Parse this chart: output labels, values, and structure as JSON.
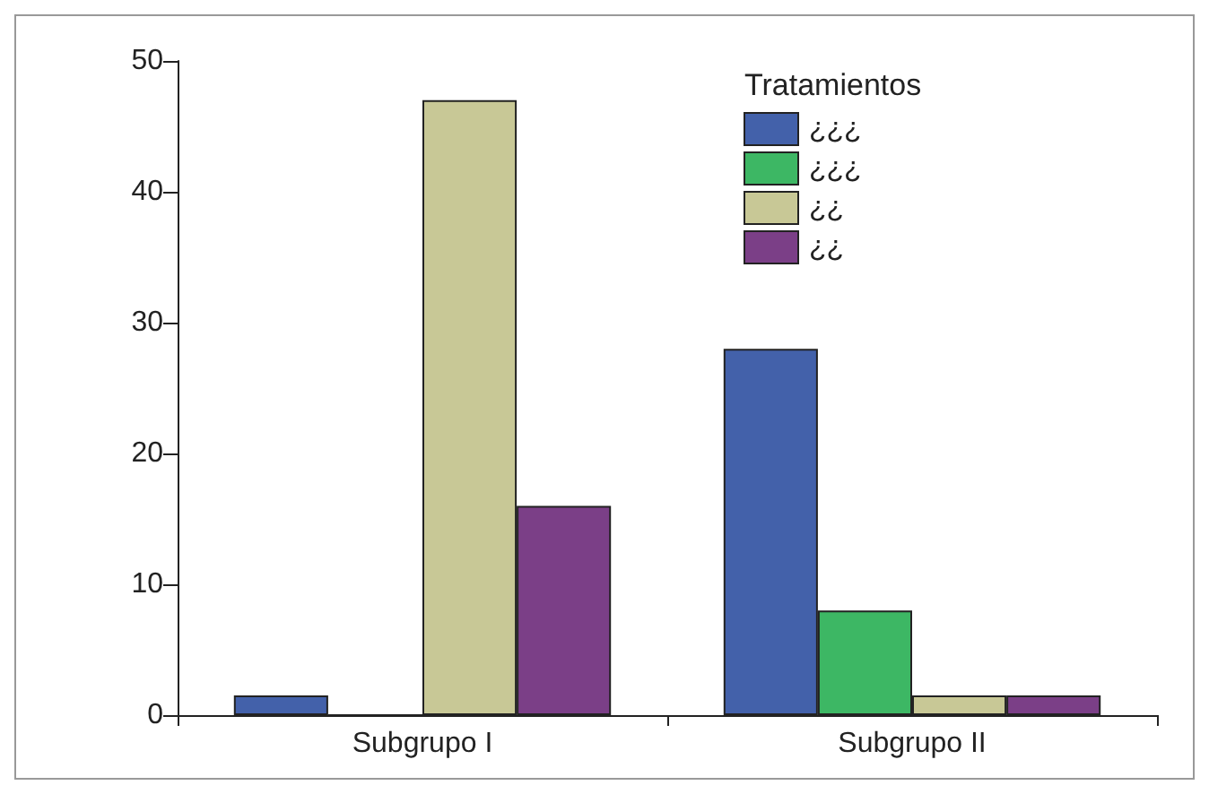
{
  "chart_data": {
    "type": "bar",
    "legend_title": "Tratamientos",
    "categories": [
      "Subgrupo I",
      "Subgrupo II"
    ],
    "series": [
      {
        "name": "¿¿¿",
        "color": "#4361aa",
        "values": [
          1.5,
          28
        ]
      },
      {
        "name": "¿¿¿",
        "color": "#3db764",
        "values": [
          0,
          8
        ]
      },
      {
        "name": "¿¿",
        "color": "#c8c896",
        "values": [
          47,
          1.5
        ]
      },
      {
        "name": "¿¿",
        "color": "#7b3f87",
        "values": [
          16,
          1.5
        ]
      }
    ],
    "ylim": [
      0,
      50
    ],
    "yticks": [
      0,
      10,
      20,
      30,
      40,
      50
    ],
    "grid": false,
    "legend": "top right"
  }
}
